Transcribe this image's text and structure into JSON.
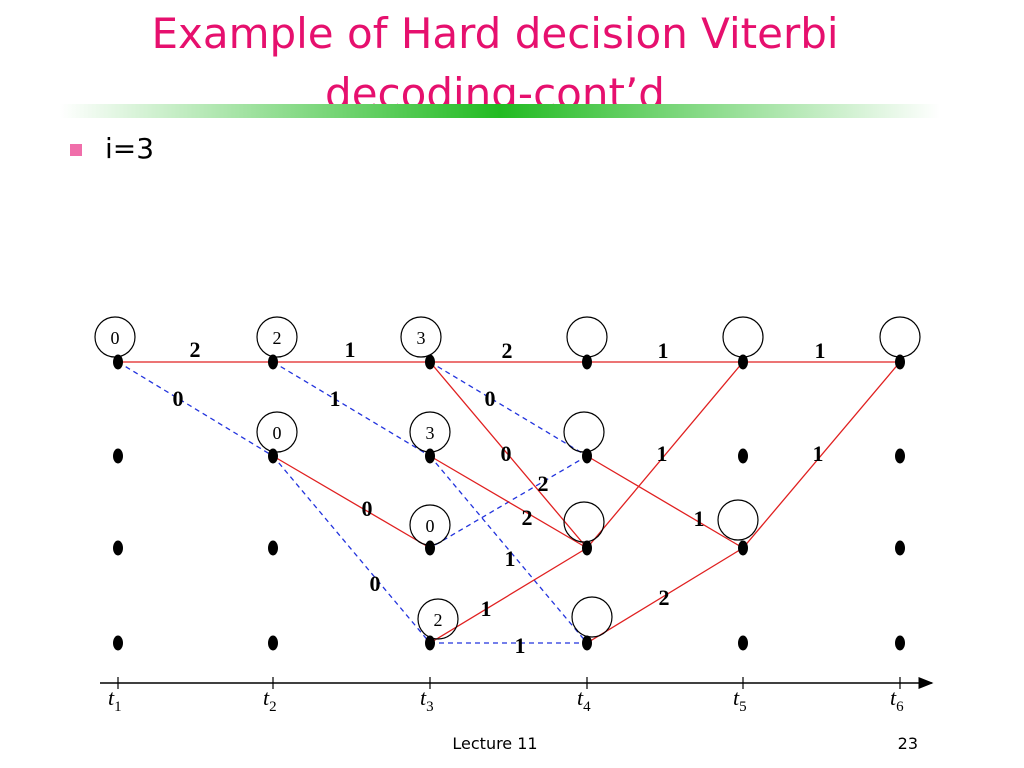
{
  "header": {
    "title_lines": [
      "Example of Hard decision Viterbi",
      "decoding-cont’d"
    ]
  },
  "bullets": [
    "i=3"
  ],
  "trellis": {
    "path_metrics": [
      "0",
      "2",
      "3",
      "0",
      "3",
      "0",
      "2"
    ],
    "branch_metrics": [
      "2",
      "1",
      "2",
      "1",
      "1",
      "0",
      "1",
      "0",
      "0",
      "2",
      "1",
      "1",
      "0",
      "2",
      "1",
      "1",
      "0",
      "1",
      "2",
      "1"
    ],
    "time_labels": [
      {
        "t": "t",
        "sub": "1"
      },
      {
        "t": "t",
        "sub": "2"
      },
      {
        "t": "t",
        "sub": "3"
      },
      {
        "t": "t",
        "sub": "4"
      },
      {
        "t": "t",
        "sub": "5"
      },
      {
        "t": "t",
        "sub": "6"
      }
    ]
  },
  "footer": {
    "left": "Lecture 11",
    "page": "23"
  }
}
